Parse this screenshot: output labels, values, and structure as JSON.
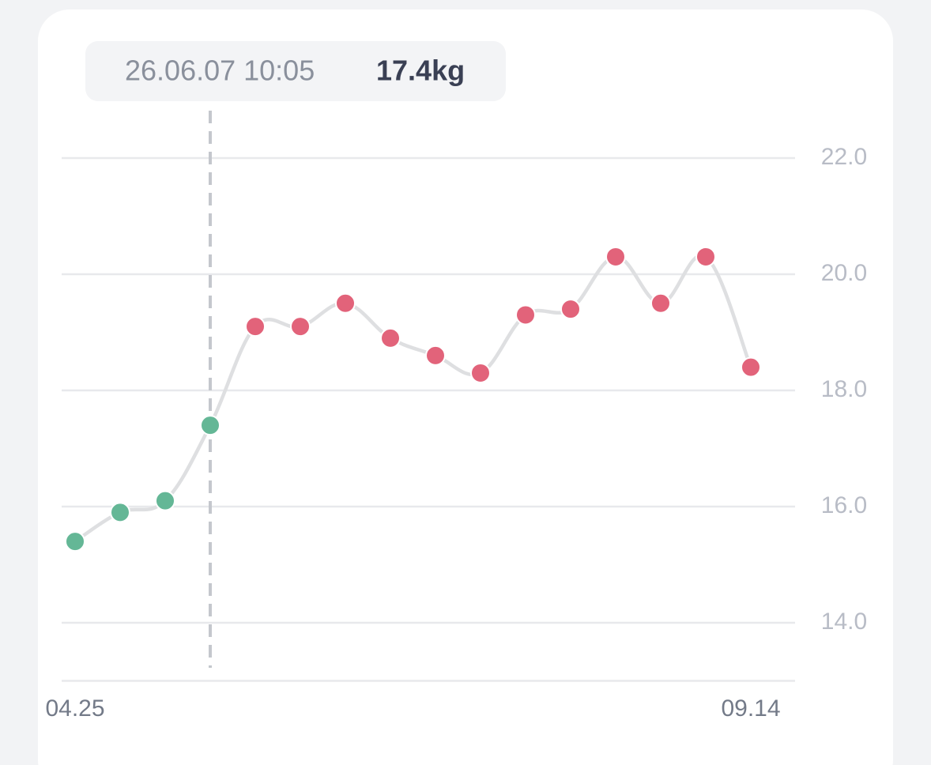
{
  "chart_data": {
    "type": "line",
    "tooltip": {
      "date": "26.06.07 10:05",
      "value_label": "17.4kg",
      "index": 3
    },
    "categories": [
      "04.25",
      null,
      null,
      null,
      null,
      null,
      null,
      null,
      null,
      null,
      null,
      null,
      null,
      null,
      null,
      "09.14"
    ],
    "series": [
      {
        "values": [
          15.4,
          15.9,
          16.1,
          17.4,
          19.1,
          19.1,
          19.5,
          18.9,
          18.6,
          18.3,
          19.3,
          19.4,
          20.3,
          19.5,
          20.3,
          18.4
        ],
        "color": "#dedfe1",
        "point_colors": [
          "#64b796",
          "#64b796",
          "#64b796",
          "#64b796",
          "#e2637a",
          "#e2637a",
          "#e2637a",
          "#e2637a",
          "#e2637a",
          "#e2637a",
          "#e2637a",
          "#e2637a",
          "#e2637a",
          "#e2637a",
          "#e2637a",
          "#e2637a"
        ]
      }
    ],
    "ylim": [
      13,
      23
    ],
    "yticks": [
      {
        "value": 14,
        "label": "14.0"
      },
      {
        "value": 16,
        "label": "16.0"
      },
      {
        "value": 18,
        "label": "18.0"
      },
      {
        "value": 20,
        "label": "20.0"
      },
      {
        "value": 22,
        "label": "22.0"
      }
    ],
    "grid": true,
    "y_axis_side": "right"
  }
}
